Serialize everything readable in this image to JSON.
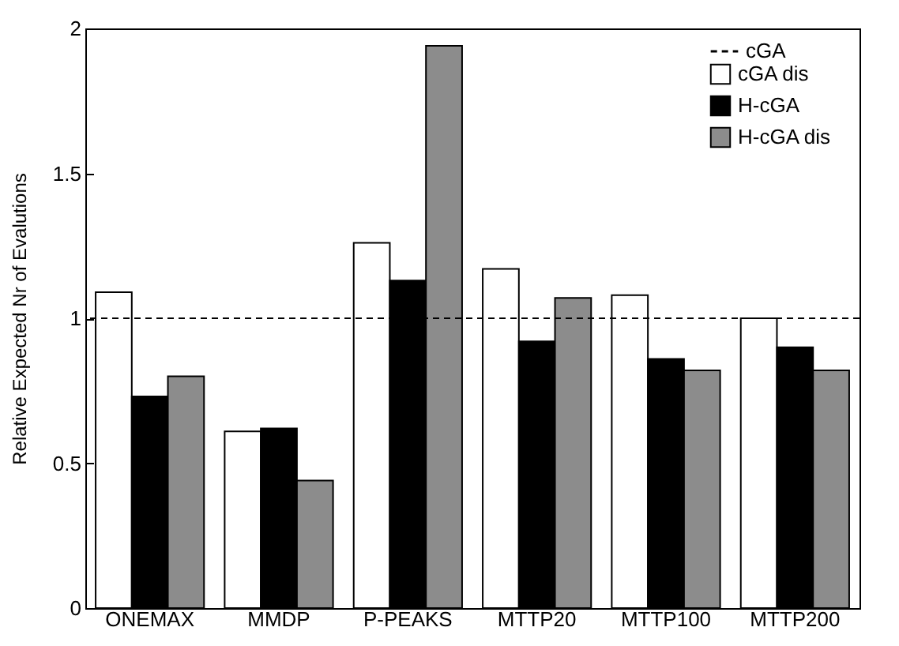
{
  "chart_data": {
    "type": "bar",
    "ylabel": "Relative Expected Nr of Evalutions",
    "categories": [
      "ONEMAX",
      "MMDP",
      "P-PEAKS",
      "MTTP20",
      "MTTP100",
      "MTTP200"
    ],
    "series": [
      {
        "name": "cGA dis",
        "color": "#ffffff",
        "values": [
          1.09,
          0.61,
          1.26,
          1.17,
          1.08,
          1.0
        ]
      },
      {
        "name": "H-cGA",
        "color": "#000000",
        "values": [
          0.73,
          0.62,
          1.13,
          0.92,
          0.86,
          0.9
        ]
      },
      {
        "name": "H-cGA dis",
        "color": "#8c8c8c",
        "values": [
          0.8,
          0.44,
          1.94,
          1.07,
          0.82,
          0.82
        ]
      }
    ],
    "ref_lines": [
      {
        "axis": "y",
        "value": 1,
        "label": "cGA",
        "color": "#000000",
        "line_style": "dashed"
      }
    ],
    "ylim": [
      0,
      2
    ],
    "yticks": [
      0,
      0.5,
      1,
      1.5,
      2
    ],
    "grid": false,
    "legend": "top right"
  }
}
